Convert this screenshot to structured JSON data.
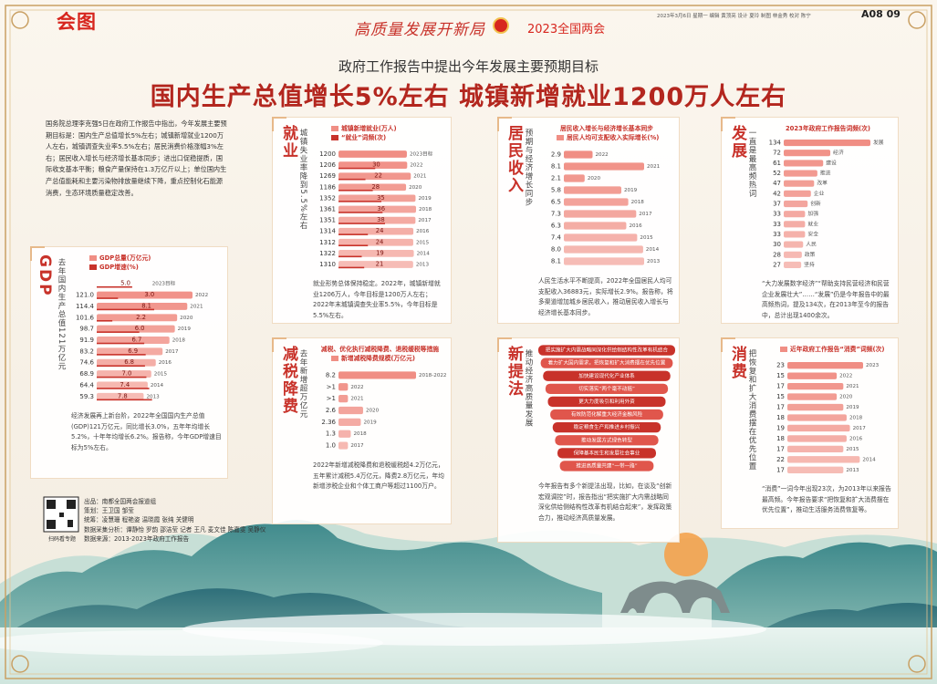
{
  "header": {
    "logo": "会图",
    "slogan": "高质量发展开新局",
    "event": "2023全国两会",
    "meta": "2023年3月6日 星期一 编辑 黄顶亮 设计 夏玲 制图 林金秀 校对 陈宁",
    "page": "A08 09",
    "subtitle": "政府工作报告中提出今年发展主要预期目标",
    "title": "国内生产总值增长5%左右  城镇新增就业1200万人左右"
  },
  "intro": "国务院总理李克强5日在政府工作报告中指出，今年发展主要预期目标是：国内生产总值增长5%左右；城镇新增就业1200万人左右，城镇调查失业率5.5%左右；居民消费价格涨幅3%左右；居民收入增长与经济增长基本同步；进出口促稳提质，国际收支基本平衡；粮食产量保持在1.3万亿斤以上；单位国内生产总值能耗和主要污染物排放量继续下降，重点控制化石能源消费，生态环境质量稳定改善。",
  "panels": [
    {
      "heading": "GDP",
      "subheading": "去年国内生产总值121万亿元",
      "chart": {
        "type": "bar",
        "categories": [
          "2023目标",
          "2022",
          "2021",
          "2020",
          "2019",
          "2018",
          "2017",
          "2016",
          "2015",
          "2014",
          "2013"
        ],
        "series": [
          {
            "name": "GDP总量(万亿元)",
            "color": "#f08e84",
            "values": [
              null,
              121.0,
              114.4,
              101.6,
              98.7,
              91.9,
              83.2,
              74.6,
              68.9,
              64.4,
              59.3
            ],
            "value_labels": [
              null,
              "121.0",
              "114.4",
              "101.6",
              "98.7",
              "91.9",
              "83.2",
              "74.6",
              "68.9",
              "64.4",
              "59.3"
            ]
          },
          {
            "name": "GDP增速(%)",
            "color": "#c8322a",
            "values": [
              5.0,
              3.0,
              8.1,
              2.2,
              6.0,
              6.7,
              6.9,
              6.8,
              7.0,
              7.4,
              7.8
            ],
            "value_labels": [
              "5.0",
              "3.0",
              "8.1",
              "2.2",
              "6.0",
              "6.7",
              "6.9",
              "6.8",
              "7.0",
              "7.4",
              "7.8"
            ]
          }
        ]
      },
      "text": "经济发展再上新台阶，2022年全国国内生产总值(GDP)121万亿元，同比增长3.0%，五年年均增长5.2%，十年年均增长6.2%。报告称，今年GDP增速目标为5%左右。"
    },
    {
      "heading": "就业",
      "subheading": "城镇失业率降到5.5%左右",
      "chart": {
        "type": "bar",
        "categories": [
          "2023目标",
          "2022",
          "2021",
          "2020",
          "2019",
          "2018",
          "2017",
          "2016",
          "2015",
          "2014",
          "2013"
        ],
        "series": [
          {
            "name": "城镇新增就业(万人)",
            "color": "#f08e84",
            "values": [
              1200,
              1206,
              1269,
              1186,
              1352,
              1361,
              1351,
              1314,
              1312,
              1322,
              1310
            ]
          },
          {
            "name": "“就业”词频(次)",
            "color": "#c8322a",
            "values": [
              null,
              30,
              22,
              28,
              35,
              36,
              38,
              24,
              24,
              19,
              21
            ]
          }
        ]
      },
      "text": "就业形势总体保持稳定。2022年，城镇新增就业1206万人，今年目标是1200万人左右；2022年末城镇调查失业率5.5%，今年目标是5.5%左右。"
    },
    {
      "heading": "居民收入",
      "subheading": "预期与经济增长同步",
      "chart": {
        "type": "bar",
        "title": "居民收入增长与经济增长基本同步",
        "categories": [
          "2022",
          "2021",
          "2020",
          "2019",
          "2018",
          "2017",
          "2016",
          "2015",
          "2014",
          "2013"
        ],
        "series": [
          {
            "name": "居民人均可支配收入实际增长(%)",
            "color": "#f08e84",
            "values": [
              2.9,
              8.1,
              2.1,
              5.8,
              6.5,
              7.3,
              6.3,
              7.4,
              8.0,
              8.1
            ],
            "value_labels": [
              "2.9",
              "8.1",
              "2.1",
              "5.8",
              "6.5",
              "7.3",
              "6.3",
              "7.4",
              "8.0",
              "8.1"
            ]
          }
        ]
      },
      "text": "人民生活水平不断提高，2022年全国居民人均可支配收入36883元，实际增长2.9%。报告称，将多渠道增加城乡居民收入，推动居民收入增长与经济增长基本同步。"
    },
    {
      "heading": "发展",
      "subheading": "一直是最高频热词",
      "chart": {
        "type": "words",
        "title": "2023年政府工作报告词频(次)",
        "color": "#f08e84",
        "categories": [
          "发展",
          "经济",
          "建设",
          "推进",
          "改革",
          "企业",
          "创新",
          "加强",
          "就业",
          "安全",
          "人民",
          "政策",
          "坚持"
        ],
        "values": [
          134,
          72,
          61,
          52,
          47,
          42,
          37,
          33,
          33,
          33,
          30,
          28,
          27
        ]
      },
      "text": "“大力发展数字经济”“帮助支持民营经济和民营企业发展壮大”……“发展”仍是今年报告中的最高频热词，提及134次，在2013年至今的报告中，总计出现1400余次。"
    },
    {
      "heading": "减税降费",
      "subheading": "去年新增超万亿元",
      "chart": {
        "type": "bar",
        "title": "减税、优化执行减税降费、退税缓税等措施",
        "categories": [
          "2018-2022",
          "2022",
          "2021",
          "2020",
          "2019",
          "2018",
          "2017"
        ],
        "series": [
          {
            "name": "新增减税降费规模(万亿元)",
            "color": "#f08e84",
            "values": [
              8.2,
              1,
              1,
              2.6,
              2.36,
              1.3,
              1.0
            ],
            "value_labels": [
              "8.2",
              ">1",
              ">1",
              "2.6",
              "2.36",
              "1.3",
              "1.0"
            ]
          }
        ]
      },
      "text": "2022年新增减税降费和退税缓税超4.2万亿元，五年累计减税5.4万亿元，降费2.8万亿元，年均新增涉税企业和个体工商户等超过1100万户。"
    },
    {
      "heading": "新提法",
      "subheading": "推动经济高质量发展",
      "items": [
        "把实施扩大内需战略同深化供给侧结构性改革有机结合",
        "着力扩大国内需求，把恢复和扩大消费摆在优先位置",
        "加快建设现代化产业体系",
        "切实落实“两个毫不动摇”",
        "更大力度吸引和利用外资",
        "有效防范化解重大经济金融风险",
        "稳定粮食生产和推进乡村振兴",
        "推动发展方式绿色转型",
        "保障基本民生和发展社会事业",
        "推进高质量共建“一带一路”"
      ],
      "text": "今年报告有多个新提法出现，比如，在谈及“创新宏观调控”时，报告指出“把实施扩大内需战略同深化供给侧结构性改革有机结合起来”，发挥政策合力，推动经济高质量发展。"
    },
    {
      "heading": "消费",
      "subheading": "把恢复和扩大消费摆在优先位置",
      "chart": {
        "type": "bar",
        "categories": [
          "2023",
          "2022",
          "2021",
          "2020",
          "2019",
          "2018",
          "2017",
          "2016",
          "2015",
          "2014",
          "2013"
        ],
        "series": [
          {
            "name": "近年政府工作报告“消费”词频(次)",
            "color": "#f08e84",
            "values": [
              23,
              15,
              17,
              15,
              17,
              18,
              19,
              18,
              17,
              22,
              17
            ]
          }
        ]
      },
      "text": "“消费”一词今年出现23次，为2013年以来报告最高频。今年报告要求“把恢复和扩大消费摆在优先位置”，推动生活服务消费恢复等。"
    }
  ],
  "credits": {
    "qr_caption": "扫码看专题",
    "lines": [
      "出品：南都全国两会报道组",
      "策划：王卫国 邹莹",
      "统筹：凌慧珊 程艳姿 温晓霞 张纯 关健明",
      "数据采集分析：谭静怡 罗韵 邵洁莹 记者 王凡 麦文佳 陈嘉雯 吴静仪",
      "数据来源：2013-2023年政府工作报告"
    ]
  }
}
